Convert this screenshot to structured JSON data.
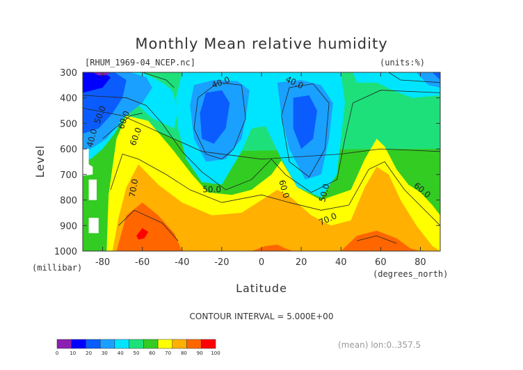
{
  "chart_data": {
    "type": "heatmap",
    "title": "Monthly Mean relative humidity",
    "source_label": "[RHUM_1969-04_NCEP.nc]",
    "units_label": "(units:%)",
    "xlabel": "Latitude",
    "ylabel": "Level",
    "x_unit_label": "(degrees_north)",
    "y_unit_label": "(millibar)",
    "x_ticks": [
      -80,
      -60,
      -40,
      -20,
      0,
      20,
      40,
      60,
      80
    ],
    "x_tick_labels": [
      "-80",
      "-60",
      "-40",
      "-20",
      "0",
      "20",
      "40",
      "60",
      "80"
    ],
    "y_ticks": [
      300,
      400,
      500,
      600,
      700,
      800,
      900,
      1000
    ],
    "y_tick_labels": [
      "300",
      "400",
      "500",
      "600",
      "700",
      "800",
      "900",
      "1000"
    ],
    "xlim": [
      -90,
      90
    ],
    "ylim": [
      1000,
      300
    ],
    "contour_interval_text": "CONTOUR INTERVAL = 5.000E+00",
    "mean_text": "(mean) lon:0..357.5",
    "contour_labels": [
      {
        "text": "40.0",
        "x": -20,
        "y": 350,
        "rot": -20
      },
      {
        "text": "40.0",
        "x": 16,
        "y": 350,
        "rot": 25
      },
      {
        "text": "50.0",
        "x": -80,
        "y": 470,
        "rot": -70
      },
      {
        "text": "60.0",
        "x": -68,
        "y": 490,
        "rot": -70
      },
      {
        "text": "40.0",
        "x": -84,
        "y": 560,
        "rot": -75
      },
      {
        "text": "60.0",
        "x": -62,
        "y": 555,
        "rot": -70
      },
      {
        "text": "70.0",
        "x": -63,
        "y": 755,
        "rot": -80
      },
      {
        "text": "50.0",
        "x": -25,
        "y": 770,
        "rot": 0
      },
      {
        "text": "60.0",
        "x": 10,
        "y": 760,
        "rot": 75
      },
      {
        "text": "50.0",
        "x": 33,
        "y": 775,
        "rot": -75
      },
      {
        "text": "70.0",
        "x": 34,
        "y": 885,
        "rot": -25
      },
      {
        "text": "60.0",
        "x": 80,
        "y": 770,
        "rot": 40
      }
    ],
    "colorbar": {
      "levels": [
        0,
        10,
        20,
        30,
        40,
        50,
        60,
        70,
        80,
        90,
        100
      ],
      "labels": [
        "0",
        "10",
        "20",
        "30",
        "40",
        "50",
        "60",
        "70",
        "80",
        "90",
        "100"
      ],
      "colors": [
        "#8b1fb4",
        "#0000ff",
        "#0a5cff",
        "#1aa0ff",
        "#00e5ff",
        "#1ee07a",
        "#33cc22",
        "#ffff00",
        "#ffb000",
        "#ff6600",
        "#ff0000"
      ]
    },
    "regions": [
      {
        "color": "#33cc22",
        "points": [
          [
            -90,
            300
          ],
          [
            90,
            300
          ],
          [
            90,
            1000
          ],
          [
            -90,
            1000
          ]
        ]
      },
      {
        "color": "#1ee07a",
        "points": [
          [
            -90,
            300
          ],
          [
            90,
            300
          ],
          [
            90,
            600
          ],
          [
            60,
            600
          ],
          [
            -30,
            610
          ],
          [
            -50,
            540
          ],
          [
            -70,
            470
          ],
          [
            -90,
            430
          ]
        ]
      },
      {
        "color": "#ffff00",
        "points": [
          [
            -78,
            1000
          ],
          [
            -77,
            780
          ],
          [
            -73,
            560
          ],
          [
            -68,
            470
          ],
          [
            -57,
            490
          ],
          [
            -45,
            600
          ],
          [
            -35,
            700
          ],
          [
            -27,
            770
          ],
          [
            -15,
            780
          ],
          [
            -5,
            760
          ],
          [
            5,
            700
          ],
          [
            10,
            645
          ],
          [
            18,
            750
          ],
          [
            30,
            800
          ],
          [
            45,
            760
          ],
          [
            52,
            640
          ],
          [
            58,
            560
          ],
          [
            62,
            590
          ],
          [
            68,
            680
          ],
          [
            74,
            740
          ],
          [
            80,
            770
          ],
          [
            86,
            820
          ],
          [
            90,
            860
          ],
          [
            90,
            1000
          ]
        ]
      },
      {
        "color": "#ffb000",
        "points": [
          [
            -75,
            1000
          ],
          [
            -72,
            870
          ],
          [
            -68,
            750
          ],
          [
            -62,
            660
          ],
          [
            -52,
            740
          ],
          [
            -40,
            810
          ],
          [
            -25,
            860
          ],
          [
            -10,
            850
          ],
          [
            0,
            800
          ],
          [
            8,
            760
          ],
          [
            15,
            790
          ],
          [
            25,
            860
          ],
          [
            35,
            900
          ],
          [
            45,
            880
          ],
          [
            52,
            750
          ],
          [
            58,
            670
          ],
          [
            64,
            700
          ],
          [
            70,
            800
          ],
          [
            78,
            900
          ],
          [
            86,
            980
          ],
          [
            90,
            1000
          ]
        ]
      },
      {
        "color": "#ff6600",
        "points": [
          [
            -73,
            1000
          ],
          [
            -68,
            860
          ],
          [
            -60,
            810
          ],
          [
            -52,
            860
          ],
          [
            -44,
            930
          ],
          [
            -40,
            1000
          ]
        ]
      },
      {
        "color": "#ff6600",
        "points": [
          [
            -5,
            1000
          ],
          [
            2,
            980
          ],
          [
            8,
            975
          ],
          [
            12,
            990
          ],
          [
            16,
            1000
          ]
        ]
      },
      {
        "color": "#ff6600",
        "points": [
          [
            40,
            1000
          ],
          [
            48,
            940
          ],
          [
            58,
            920
          ],
          [
            68,
            950
          ],
          [
            75,
            990
          ],
          [
            80,
            1000
          ]
        ]
      },
      {
        "color": "#ff0000",
        "points": [
          [
            -63,
            940
          ],
          [
            -60,
            910
          ],
          [
            -57,
            925
          ],
          [
            -59,
            950
          ],
          [
            -62,
            955
          ]
        ]
      },
      {
        "color": "#00e5ff",
        "points": [
          [
            -90,
            300
          ],
          [
            -60,
            300
          ],
          [
            -50,
            340
          ],
          [
            -45,
            370
          ],
          [
            -42,
            450
          ],
          [
            -44,
            520
          ],
          [
            -55,
            480
          ],
          [
            -62,
            430
          ],
          [
            -68,
            460
          ],
          [
            -74,
            540
          ],
          [
            -80,
            600
          ],
          [
            -86,
            640
          ],
          [
            -90,
            640
          ]
        ]
      },
      {
        "color": "#00e5ff",
        "points": [
          [
            -40,
            300
          ],
          [
            40,
            300
          ],
          [
            42,
            420
          ],
          [
            40,
            560
          ],
          [
            38,
            700
          ],
          [
            30,
            790
          ],
          [
            18,
            750
          ],
          [
            10,
            640
          ],
          [
            2,
            510
          ],
          [
            -5,
            520
          ],
          [
            -10,
            610
          ],
          [
            -20,
            740
          ],
          [
            -30,
            730
          ],
          [
            -38,
            640
          ],
          [
            -42,
            520
          ],
          [
            -43,
            400
          ]
        ]
      },
      {
        "color": "#00e5ff",
        "points": [
          [
            46,
            300
          ],
          [
            90,
            300
          ],
          [
            90,
            390
          ],
          [
            76,
            400
          ],
          [
            66,
            370
          ],
          [
            58,
            340
          ],
          [
            48,
            340
          ]
        ]
      },
      {
        "color": "#1aa0ff",
        "points": [
          [
            -90,
            300
          ],
          [
            -66,
            300
          ],
          [
            -58,
            320
          ],
          [
            -55,
            360
          ],
          [
            -60,
            420
          ],
          [
            -70,
            480
          ],
          [
            -78,
            560
          ],
          [
            -86,
            600
          ],
          [
            -90,
            600
          ]
        ]
      },
      {
        "color": "#1aa0ff",
        "points": [
          [
            -34,
            350
          ],
          [
            -24,
            330
          ],
          [
            -12,
            335
          ],
          [
            -6,
            370
          ],
          [
            -8,
            480
          ],
          [
            -10,
            560
          ],
          [
            -18,
            640
          ],
          [
            -28,
            650
          ],
          [
            -34,
            560
          ],
          [
            -36,
            430
          ]
        ]
      },
      {
        "color": "#1aa0ff",
        "points": [
          [
            8,
            340
          ],
          [
            20,
            330
          ],
          [
            30,
            350
          ],
          [
            36,
            420
          ],
          [
            34,
            560
          ],
          [
            30,
            700
          ],
          [
            22,
            720
          ],
          [
            14,
            600
          ],
          [
            10,
            470
          ]
        ]
      },
      {
        "color": "#1aa0ff",
        "points": [
          [
            78,
            300
          ],
          [
            90,
            300
          ],
          [
            90,
            360
          ],
          [
            84,
            350
          ]
        ]
      },
      {
        "color": "#0a5cff",
        "points": [
          [
            -90,
            300
          ],
          [
            -74,
            300
          ],
          [
            -68,
            330
          ],
          [
            -70,
            400
          ],
          [
            -75,
            460
          ],
          [
            -82,
            520
          ],
          [
            -90,
            540
          ]
        ]
      },
      {
        "color": "#0a5cff",
        "points": [
          [
            -28,
            380
          ],
          [
            -20,
            370
          ],
          [
            -16,
            420
          ],
          [
            -18,
            520
          ],
          [
            -24,
            580
          ],
          [
            -30,
            560
          ],
          [
            -31,
            460
          ]
        ]
      },
      {
        "color": "#0a5cff",
        "points": [
          [
            16,
            400
          ],
          [
            24,
            390
          ],
          [
            28,
            450
          ],
          [
            26,
            560
          ],
          [
            20,
            600
          ],
          [
            16,
            520
          ]
        ]
      },
      {
        "color": "#0a5cff",
        "points": [
          [
            86,
            300
          ],
          [
            90,
            300
          ],
          [
            90,
            330
          ]
        ]
      },
      {
        "color": "#0000ff",
        "points": [
          [
            -90,
            300
          ],
          [
            -80,
            300
          ],
          [
            -76,
            320
          ],
          [
            -80,
            360
          ],
          [
            -90,
            380
          ]
        ]
      },
      {
        "color": "#8b1fb4",
        "points": [
          [
            -85,
            300
          ],
          [
            -76,
            300
          ],
          [
            -78,
            310
          ],
          [
            -82,
            312
          ]
        ]
      },
      {
        "color": "#ffffff",
        "points": [
          [
            -90,
            600
          ],
          [
            -87,
            600
          ],
          [
            -87,
            660
          ],
          [
            -85,
            670
          ],
          [
            -85,
            700
          ],
          [
            -90,
            705
          ]
        ]
      },
      {
        "color": "#ffffff",
        "points": [
          [
            -87,
            720
          ],
          [
            -83,
            720
          ],
          [
            -83,
            800
          ],
          [
            -87,
            800
          ]
        ]
      },
      {
        "color": "#ffffff",
        "points": [
          [
            -87,
            870
          ],
          [
            -82,
            870
          ],
          [
            -82,
            930
          ],
          [
            -87,
            930
          ]
        ]
      }
    ],
    "contour_lines": [
      [
        [
          -90,
          440
        ],
        [
          -70,
          470
        ],
        [
          -50,
          540
        ],
        [
          -30,
          610
        ],
        [
          0,
          640
        ],
        [
          40,
          620
        ],
        [
          60,
          600
        ],
        [
          90,
          610
        ]
      ],
      [
        [
          -90,
          390
        ],
        [
          -68,
          400
        ],
        [
          -58,
          430
        ],
        [
          -50,
          500
        ],
        [
          -40,
          610
        ],
        [
          -30,
          690
        ],
        [
          -18,
          760
        ],
        [
          -5,
          720
        ],
        [
          5,
          640
        ],
        [
          12,
          700
        ],
        [
          25,
          770
        ],
        [
          38,
          720
        ],
        [
          42,
          560
        ],
        [
          46,
          420
        ],
        [
          60,
          370
        ],
        [
          90,
          380
        ]
      ],
      [
        [
          -80,
          560
        ],
        [
          -74,
          520
        ],
        [
          -66,
          470
        ],
        [
          -60,
          460
        ]
      ],
      [
        [
          -20,
          640
        ],
        [
          -28,
          620
        ],
        [
          -34,
          520
        ],
        [
          -32,
          400
        ],
        [
          -22,
          340
        ],
        [
          -10,
          350
        ],
        [
          -8,
          480
        ],
        [
          -14,
          600
        ],
        [
          -20,
          640
        ]
      ],
      [
        [
          14,
          650
        ],
        [
          10,
          470
        ],
        [
          14,
          360
        ],
        [
          26,
          345
        ],
        [
          34,
          420
        ],
        [
          32,
          600
        ],
        [
          24,
          710
        ],
        [
          14,
          650
        ]
      ],
      [
        [
          -76,
          760
        ],
        [
          -70,
          620
        ],
        [
          -62,
          640
        ],
        [
          -48,
          700
        ],
        [
          -36,
          760
        ],
        [
          -20,
          810
        ],
        [
          0,
          780
        ],
        [
          14,
          810
        ],
        [
          30,
          840
        ],
        [
          44,
          820
        ],
        [
          54,
          680
        ],
        [
          62,
          650
        ],
        [
          72,
          760
        ],
        [
          90,
          900
        ]
      ],
      [
        [
          -72,
          900
        ],
        [
          -64,
          840
        ],
        [
          -50,
          890
        ],
        [
          -42,
          960
        ]
      ],
      [
        [
          48,
          960
        ],
        [
          58,
          940
        ],
        [
          68,
          970
        ]
      ],
      [
        [
          -60,
          300
        ],
        [
          -48,
          330
        ],
        [
          -44,
          360
        ]
      ],
      [
        [
          64,
          300
        ],
        [
          70,
          330
        ],
        [
          90,
          340
        ]
      ]
    ]
  }
}
